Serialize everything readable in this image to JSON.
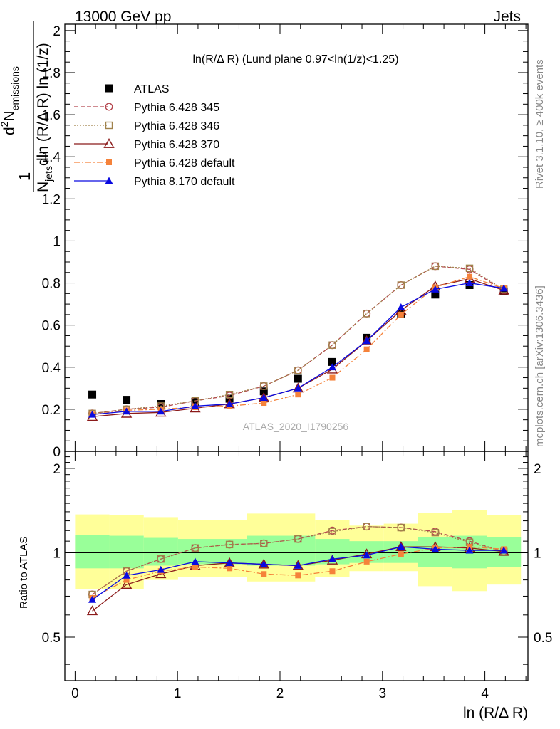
{
  "header": {
    "energy_label": "13000 GeV pp",
    "process_label": "Jets",
    "analysis_id": "ATLAS_2020_I1790256",
    "rivet_label": "Rivet 3.1.10, ≥ 400k events",
    "source_label": "mcplots.cern.ch [arXiv:1306.3436]"
  },
  "chart_data": [
    {
      "panel": "main",
      "type": "line",
      "title": "ln(R/Δ R) (Lund plane 0.97<ln(1/z)<1.25)",
      "xlabel": "ln (R/Δ R)",
      "ylabel": "1/N_jets dln(R/ΔR) ln(1/z) d²N_emissions",
      "ylabel_parts": {
        "one": "1",
        "num_d": "d",
        "num_sup": "2",
        "num_n": "N",
        "num_sub": "emissions",
        "den_n": "N",
        "den_sub": "jets",
        "den_rest": "dln (R/Δ R) ln (1/z)"
      },
      "xlim": [
        -0.1,
        4.42
      ],
      "ylim": [
        0,
        2.03
      ],
      "y_ticks": [
        0,
        0.2,
        0.4,
        0.6,
        0.8,
        1,
        1.2,
        1.4,
        1.6,
        1.8,
        2
      ],
      "y_tick_labels": [
        "0",
        "0.2",
        "0.4",
        "0.6",
        "0.8",
        "1",
        "1.2",
        "1.4",
        "1.6",
        "1.8",
        "2"
      ],
      "legend_position": "top-left",
      "x": [
        0.168,
        0.502,
        0.837,
        1.172,
        1.507,
        1.842,
        2.176,
        2.511,
        2.846,
        3.181,
        3.515,
        3.85,
        4.185
      ],
      "series": [
        {
          "name": "ATLAS",
          "color": "#000000",
          "marker": "filled-square",
          "dash": "none",
          "values": [
            0.27,
            0.245,
            0.225,
            0.235,
            0.25,
            0.285,
            0.345,
            0.425,
            0.54,
            0.655,
            0.745,
            0.79,
            0.76
          ]
        },
        {
          "name": "Pythia 6.428 345",
          "color": "#b5474f",
          "marker": "open-circle",
          "dash": "6,3",
          "values": [
            0.18,
            0.2,
            0.21,
            0.24,
            0.265,
            0.31,
            0.385,
            0.505,
            0.655,
            0.79,
            0.88,
            0.865,
            0.765
          ]
        },
        {
          "name": "Pythia 6.428 346",
          "color": "#a0824b",
          "marker": "open-square",
          "dash": "2,2",
          "values": [
            0.18,
            0.2,
            0.215,
            0.24,
            0.27,
            0.31,
            0.385,
            0.505,
            0.655,
            0.79,
            0.88,
            0.87,
            0.77
          ]
        },
        {
          "name": "Pythia 6.428 370",
          "color": "#8b1a1a",
          "marker": "open-triangle",
          "dash": "none",
          "values": [
            0.165,
            0.18,
            0.185,
            0.205,
            0.225,
            0.255,
            0.3,
            0.39,
            0.525,
            0.67,
            0.785,
            0.82,
            0.765
          ]
        },
        {
          "name": "Pythia 6.428 default",
          "color": "#f5823a",
          "marker": "filled-square-small",
          "dash": "8,3,2,3",
          "values": [
            0.175,
            0.195,
            0.2,
            0.21,
            0.215,
            0.23,
            0.27,
            0.35,
            0.485,
            0.65,
            0.78,
            0.83,
            0.775
          ]
        },
        {
          "name": "Pythia 8.170 default",
          "color": "#0a0ae0",
          "marker": "filled-triangle",
          "dash": "none",
          "values": [
            0.175,
            0.19,
            0.19,
            0.215,
            0.225,
            0.255,
            0.3,
            0.4,
            0.525,
            0.685,
            0.77,
            0.8,
            0.775
          ]
        }
      ]
    },
    {
      "panel": "ratio",
      "type": "line",
      "ylabel": "Ratio to ATLAS",
      "log_scale_y": true,
      "ylim": [
        0.35,
        2.3
      ],
      "xlim": [
        -0.1,
        4.42
      ],
      "x_ticks": [
        0,
        1,
        2,
        3,
        4
      ],
      "x_tick_labels": [
        "0",
        "1",
        "2",
        "3",
        "4"
      ],
      "y_tick_labels": {
        "0.5": "0.5",
        "1": "1",
        "2": "2"
      },
      "reference_line": 1,
      "x_edges": [
        0,
        0.335,
        0.67,
        1.005,
        1.339,
        1.674,
        2.009,
        2.343,
        2.678,
        3.013,
        3.348,
        3.683,
        4.018,
        4.352
      ],
      "band_outer": {
        "color": "#ffff99",
        "low": [
          0.74,
          0.74,
          0.8,
          0.82,
          0.82,
          0.79,
          0.79,
          0.82,
          0.86,
          0.86,
          0.76,
          0.73,
          0.77
        ],
        "high": [
          1.37,
          1.36,
          1.34,
          1.31,
          1.31,
          1.38,
          1.38,
          1.31,
          1.25,
          1.27,
          1.39,
          1.42,
          1.36
        ]
      },
      "band_inner": {
        "color": "#99ff99",
        "low": [
          0.88,
          0.88,
          0.9,
          0.91,
          0.91,
          0.9,
          0.9,
          0.91,
          0.92,
          0.92,
          0.89,
          0.88,
          0.89
        ],
        "high": [
          1.16,
          1.15,
          1.13,
          1.12,
          1.12,
          1.15,
          1.15,
          1.12,
          1.1,
          1.1,
          1.14,
          1.15,
          1.14
        ]
      },
      "x": [
        0.168,
        0.502,
        0.837,
        1.172,
        1.507,
        1.842,
        2.176,
        2.511,
        2.846,
        3.181,
        3.515,
        3.85,
        4.185
      ],
      "series": [
        {
          "name": "Pythia 6.428 345",
          "color": "#b5474f",
          "marker": "open-circle",
          "dash": "6,3",
          "values": [
            0.71,
            0.86,
            0.95,
            1.04,
            1.07,
            1.08,
            1.12,
            1.2,
            1.24,
            1.23,
            1.19,
            1.1,
            1.01
          ]
        },
        {
          "name": "Pythia 6.428 346",
          "color": "#a0824b",
          "marker": "open-square",
          "dash": "2,2",
          "values": [
            0.71,
            0.86,
            0.95,
            1.04,
            1.07,
            1.08,
            1.12,
            1.19,
            1.24,
            1.23,
            1.18,
            1.09,
            1.01
          ]
        },
        {
          "name": "Pythia 6.428 370",
          "color": "#8b1a1a",
          "marker": "open-triangle",
          "dash": "none",
          "values": [
            0.62,
            0.77,
            0.84,
            0.9,
            0.92,
            0.91,
            0.9,
            0.94,
            0.99,
            1.05,
            1.05,
            1.04,
            1.01
          ]
        },
        {
          "name": "Pythia 6.428 default",
          "color": "#f5823a",
          "marker": "filled-square-small",
          "dash": "8,3,2,3",
          "values": [
            0.69,
            0.8,
            0.86,
            0.89,
            0.88,
            0.84,
            0.83,
            0.86,
            0.93,
            0.99,
            1.04,
            1.05,
            1.03
          ]
        },
        {
          "name": "Pythia 8.170 default",
          "color": "#0a0ae0",
          "marker": "filled-triangle",
          "dash": "none",
          "values": [
            0.68,
            0.83,
            0.87,
            0.93,
            0.92,
            0.91,
            0.9,
            0.95,
            0.98,
            1.05,
            1.03,
            1.02,
            1.02
          ]
        }
      ]
    }
  ]
}
